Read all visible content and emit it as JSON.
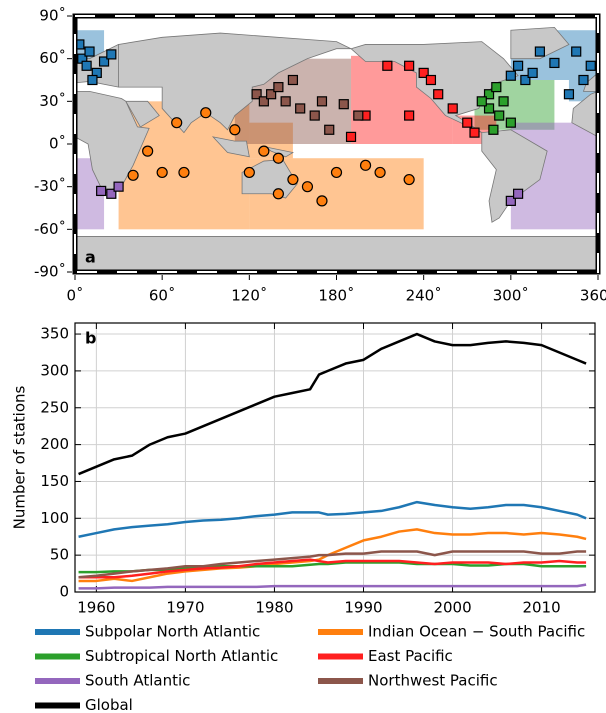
{
  "chart_data": [
    {
      "type": "map",
      "panel_label": "a",
      "xlim": [
        0,
        360
      ],
      "ylim": [
        -90,
        90
      ],
      "xticks": [
        {
          "value": 0,
          "label": "0˚"
        },
        {
          "value": 60,
          "label": "60˚"
        },
        {
          "value": 120,
          "label": "120˚"
        },
        {
          "value": 180,
          "label": "180˚"
        },
        {
          "value": 240,
          "label": "240˚"
        },
        {
          "value": 300,
          "label": "300˚"
        },
        {
          "value": 360,
          "label": "360˚"
        }
      ],
      "yticks": [
        {
          "value": -90,
          "label": "-90˚"
        },
        {
          "value": -60,
          "label": "-60˚"
        },
        {
          "value": -30,
          "label": "-30˚"
        },
        {
          "value": 0,
          "label": "0˚"
        },
        {
          "value": 30,
          "label": "30˚"
        },
        {
          "value": 60,
          "label": "60˚"
        },
        {
          "value": 90,
          "label": "90˚"
        }
      ],
      "series": [
        {
          "color": "#1f77b4",
          "marker": "square",
          "x": [
            5,
            8,
            10,
            15,
            20,
            3,
            12,
            25,
            355,
            350,
            345,
            330,
            320,
            305,
            310,
            315,
            300,
            340
          ],
          "y": [
            60,
            55,
            65,
            50,
            58,
            70,
            45,
            63,
            55,
            45,
            65,
            57,
            65,
            55,
            45,
            50,
            48,
            35
          ]
        },
        {
          "color": "#ff7f0e",
          "marker": "circle",
          "x": [
            90,
            70,
            50,
            60,
            75,
            40,
            110,
            130,
            140,
            150,
            160,
            120,
            170,
            200,
            210,
            230,
            180,
            140
          ],
          "y": [
            22,
            15,
            -5,
            -20,
            -20,
            -22,
            10,
            -5,
            -10,
            -25,
            -30,
            -20,
            -40,
            -15,
            -20,
            -25,
            -20,
            -35
          ]
        },
        {
          "color": "#2ca02c",
          "marker": "square",
          "x": [
            285,
            290,
            295,
            285,
            280,
            292,
            300,
            288
          ],
          "y": [
            35,
            40,
            30,
            25,
            30,
            20,
            15,
            10
          ]
        },
        {
          "color": "#ff2020",
          "marker": "square",
          "x": [
            215,
            230,
            240,
            245,
            250,
            260,
            270,
            275,
            230,
            200,
            190
          ],
          "y": [
            55,
            55,
            50,
            45,
            35,
            25,
            15,
            8,
            20,
            20,
            5
          ]
        },
        {
          "color": "#9467bd",
          "marker": "square",
          "x": [
            18,
            25,
            30,
            300,
            305
          ],
          "y": [
            -33,
            -35,
            -30,
            -40,
            -35
          ]
        },
        {
          "color": "#8c564b",
          "marker": "square",
          "x": [
            125,
            130,
            135,
            140,
            145,
            155,
            165,
            175,
            170,
            185,
            195,
            150
          ],
          "y": [
            35,
            30,
            35,
            40,
            30,
            25,
            20,
            10,
            30,
            28,
            20,
            45
          ]
        }
      ]
    },
    {
      "type": "line",
      "panel_label": "b",
      "y_label": "Number of stations",
      "xlim": [
        1957.6,
        2016
      ],
      "ylim": [
        0,
        365
      ],
      "xticks": [
        1960,
        1970,
        1980,
        1990,
        2000,
        2010
      ],
      "yticks": [
        0,
        50,
        100,
        150,
        200,
        250,
        300,
        350
      ],
      "grid": true,
      "x": [
        1958,
        1960,
        1962,
        1964,
        1966,
        1968,
        1970,
        1972,
        1974,
        1976,
        1978,
        1980,
        1982,
        1984,
        1985,
        1986,
        1988,
        1990,
        1992,
        1994,
        1996,
        1998,
        2000,
        2002,
        2004,
        2006,
        2008,
        2010,
        2012,
        2014,
        2015
      ],
      "series": [
        {
          "name": "Subpolar North Atlantic",
          "color": "#1f77b4",
          "values": [
            75,
            80,
            85,
            88,
            90,
            92,
            95,
            97,
            98,
            100,
            103,
            105,
            108,
            108,
            108,
            105,
            106,
            108,
            110,
            115,
            122,
            118,
            115,
            113,
            115,
            118,
            118,
            115,
            110,
            105,
            100
          ]
        },
        {
          "name": "Indian Ocean − South Pacific",
          "color": "#ff7f0e",
          "values": [
            15,
            15,
            18,
            15,
            20,
            25,
            28,
            30,
            32,
            33,
            35,
            38,
            40,
            42,
            44,
            50,
            60,
            70,
            75,
            82,
            85,
            80,
            78,
            78,
            80,
            80,
            78,
            80,
            78,
            75,
            72
          ]
        },
        {
          "name": "Subtropical North Atlantic",
          "color": "#2ca02c",
          "values": [
            27,
            27,
            28,
            28,
            30,
            30,
            32,
            33,
            35,
            35,
            35,
            35,
            35,
            37,
            38,
            38,
            40,
            40,
            40,
            40,
            38,
            38,
            38,
            36,
            36,
            38,
            38,
            35,
            35,
            35,
            35
          ]
        },
        {
          "name": "East Pacific",
          "color": "#ff2020",
          "values": [
            20,
            20,
            20,
            22,
            25,
            28,
            30,
            32,
            33,
            35,
            38,
            40,
            42,
            44,
            42,
            40,
            42,
            42,
            42,
            42,
            40,
            38,
            40,
            40,
            40,
            38,
            40,
            40,
            42,
            40,
            40
          ]
        },
        {
          "name": "South Atlantic",
          "color": "#9467bd",
          "values": [
            5,
            5,
            6,
            6,
            6,
            7,
            7,
            7,
            7,
            7,
            7,
            8,
            8,
            8,
            8,
            8,
            8,
            8,
            8,
            8,
            8,
            8,
            8,
            8,
            8,
            8,
            8,
            8,
            8,
            8,
            10
          ]
        },
        {
          "name": "Northwest Pacific",
          "color": "#8c564b",
          "values": [
            20,
            22,
            25,
            28,
            30,
            32,
            35,
            35,
            38,
            40,
            42,
            44,
            46,
            48,
            50,
            50,
            52,
            52,
            55,
            55,
            55,
            50,
            55,
            55,
            55,
            55,
            55,
            52,
            52,
            55,
            55
          ]
        },
        {
          "name": "Global",
          "color": "#000000",
          "values": [
            160,
            170,
            180,
            185,
            200,
            210,
            215,
            225,
            235,
            245,
            255,
            265,
            270,
            275,
            295,
            300,
            310,
            315,
            330,
            340,
            350,
            340,
            335,
            335,
            338,
            340,
            338,
            335,
            325,
            315,
            310
          ]
        }
      ]
    }
  ]
}
